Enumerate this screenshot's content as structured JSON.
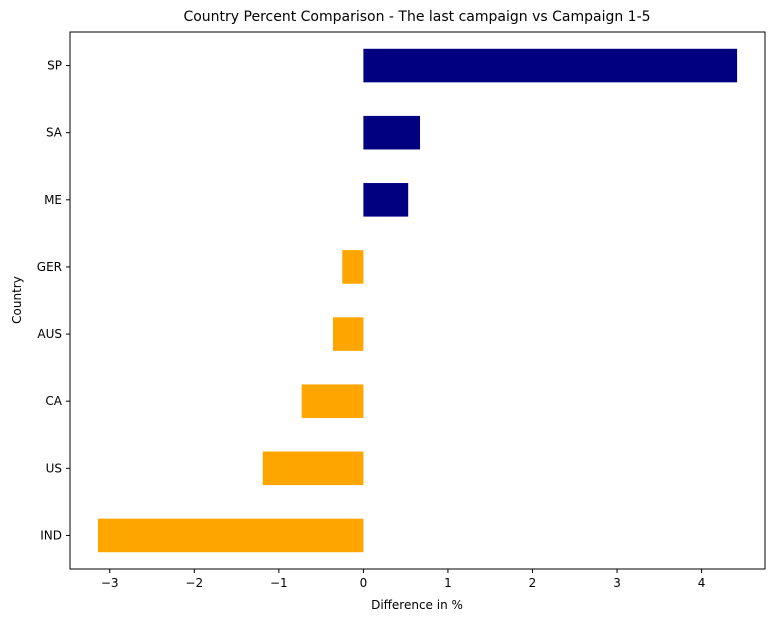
{
  "chart_data": {
    "type": "bar",
    "orientation": "horizontal",
    "title": "Country Percent Comparison - The last campaign vs Campaign 1-5",
    "xlabel": "Difference in %",
    "ylabel": "Country",
    "categories": [
      "IND",
      "US",
      "CA",
      "AUS",
      "GER",
      "ME",
      "SA",
      "SP"
    ],
    "values": [
      -3.14,
      -1.19,
      -0.73,
      -0.36,
      -0.25,
      0.53,
      0.67,
      4.42
    ],
    "xlim": [
      -3.47,
      4.75
    ],
    "xticks": [
      -3,
      -2,
      -1,
      0,
      1,
      2,
      3,
      4
    ],
    "xtick_labels": [
      "−3",
      "−2",
      "−1",
      "0",
      "1",
      "2",
      "3",
      "4"
    ],
    "grid": false,
    "legend": "none",
    "colors": {
      "positive": "#000080",
      "negative": "#FFA500",
      "axis": "#000000"
    }
  }
}
